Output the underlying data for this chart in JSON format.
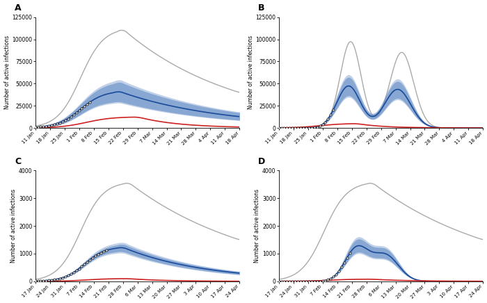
{
  "panels": [
    "A",
    "B",
    "C",
    "D"
  ],
  "panel_A": {
    "ylabel": "Number of active infections",
    "ylim": [
      0,
      125000
    ],
    "yticks": [
      0,
      25000,
      50000,
      75000,
      100000,
      125000
    ],
    "ytick_labels": [
      "0",
      "25000",
      "50000",
      "75000",
      "100000",
      "125000"
    ],
    "xtick_labels": [
      "11 Jan",
      "18 Jan",
      "25 Jan",
      "1 Feb",
      "8 Feb",
      "15 Feb",
      "22 Feb",
      "29 Feb",
      "7 Mar",
      "14 Mar",
      "21 Mar",
      "28 Mar",
      "4 Apr",
      "11 Apr",
      "18 Apr"
    ]
  },
  "panel_B": {
    "ylabel": "Number of active infections",
    "ylim": [
      0,
      125000
    ],
    "yticks": [
      0,
      25000,
      50000,
      75000,
      100000,
      125000
    ],
    "ytick_labels": [
      "0",
      "25000",
      "50000",
      "75000",
      "100000",
      "125000"
    ],
    "xtick_labels": [
      "11 Jan",
      "18 Jan",
      "25 Jan",
      "1 Feb",
      "8 Feb",
      "15 Feb",
      "22 Feb",
      "29 Feb",
      "7 Mar",
      "14 Mar",
      "21 Mar",
      "28 Mar",
      "4 Apr",
      "11 Apr",
      "18 Apr"
    ]
  },
  "panel_C": {
    "ylabel": "Number of active infections",
    "ylim": [
      0,
      4000
    ],
    "yticks": [
      0,
      1000,
      2000,
      3000,
      4000
    ],
    "ytick_labels": [
      "0",
      "1000",
      "2000",
      "3000",
      "4000"
    ],
    "xtick_labels": [
      "17 Jan",
      "24 Jan",
      "31 Jan",
      "7 Feb",
      "14 Feb",
      "21 Feb",
      "28 Feb",
      "6 Mar",
      "13 Mar",
      "20 Mar",
      "27 Mar",
      "3 Apr",
      "10 Apr",
      "17 Apr",
      "24 Apr"
    ]
  },
  "panel_D": {
    "ylabel": "Number of active infections",
    "ylim": [
      0,
      4000
    ],
    "yticks": [
      0,
      1000,
      2000,
      3000,
      4000
    ],
    "ytick_labels": [
      "0",
      "1000",
      "2000",
      "3000",
      "4000"
    ],
    "xtick_labels": [
      "17 Jan",
      "24 Jan",
      "31 Jan",
      "7 Feb",
      "14 Feb",
      "21 Feb",
      "28 Feb",
      "6 Mar",
      "13 Mar",
      "20 Mar",
      "27 Mar",
      "3 Apr",
      "10 Apr",
      "17 Apr",
      "24 Apr"
    ]
  },
  "colors": {
    "gray": "#aaaaaa",
    "blue_dark": "#1a4a9a",
    "blue_mid": "#4477bb",
    "blue_light": "#7799cc",
    "red": "#cc2222",
    "bg": "#ffffff"
  }
}
